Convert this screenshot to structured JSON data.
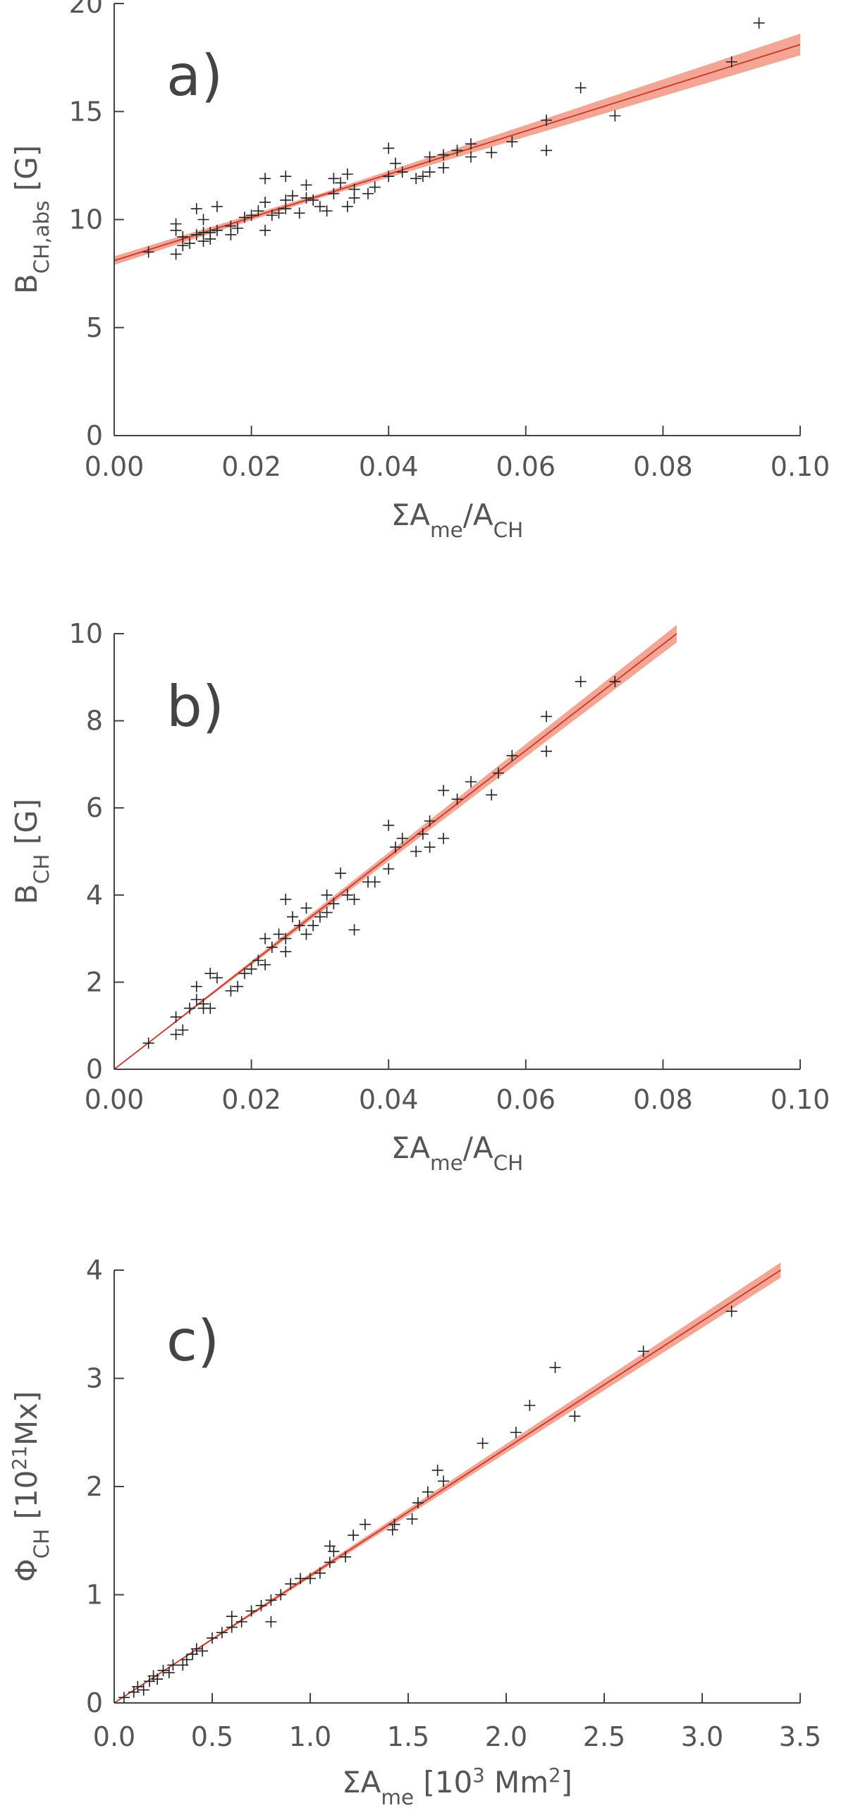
{
  "chart_data": [
    {
      "type": "scatter",
      "annotation": "a)",
      "xlabel": [
        {
          "text": "ΣA"
        },
        {
          "text": "me",
          "sub": true
        },
        {
          "text": "/A"
        },
        {
          "text": "CH",
          "sub": true
        }
      ],
      "ylabel": [
        {
          "text": "B"
        },
        {
          "text": "CH,abs",
          "sub": true
        },
        {
          "text": " [G]"
        }
      ],
      "xlim": [
        0,
        0.1
      ],
      "ylim": [
        0,
        20
      ],
      "xticks": [
        {
          "value": 0,
          "label": "0.00"
        },
        {
          "value": 0.02,
          "label": "0.02"
        },
        {
          "value": 0.04,
          "label": "0.04"
        },
        {
          "value": 0.06,
          "label": "0.06"
        },
        {
          "value": 0.08,
          "label": "0.08"
        },
        {
          "value": 0.1,
          "label": "0.10"
        }
      ],
      "yticks": [
        0,
        5,
        10,
        15,
        20
      ],
      "points": {
        "color": "#222222",
        "x": [
          0.005,
          0.009,
          0.009,
          0.009,
          0.01,
          0.01,
          0.011,
          0.012,
          0.012,
          0.013,
          0.013,
          0.013,
          0.014,
          0.014,
          0.015,
          0.015,
          0.017,
          0.017,
          0.018,
          0.019,
          0.02,
          0.021,
          0.022,
          0.022,
          0.022,
          0.023,
          0.024,
          0.025,
          0.025,
          0.025,
          0.026,
          0.027,
          0.028,
          0.028,
          0.029,
          0.03,
          0.031,
          0.032,
          0.032,
          0.033,
          0.034,
          0.034,
          0.035,
          0.035,
          0.037,
          0.038,
          0.04,
          0.04,
          0.041,
          0.042,
          0.044,
          0.045,
          0.046,
          0.046,
          0.048,
          0.048,
          0.05,
          0.052,
          0.052,
          0.055,
          0.058,
          0.063,
          0.063,
          0.068,
          0.073,
          0.09,
          0.094
        ],
        "y": [
          8.5,
          8.4,
          9.8,
          9.5,
          8.8,
          9.2,
          8.9,
          10.5,
          9.3,
          9.0,
          10.0,
          9.4,
          9.1,
          9.4,
          10.6,
          9.5,
          9.3,
          9.7,
          9.6,
          10.1,
          10.2,
          10.4,
          9.5,
          10.8,
          11.9,
          10.2,
          10.3,
          12.0,
          10.5,
          10.9,
          11.1,
          10.3,
          11.6,
          11.0,
          10.9,
          10.6,
          10.4,
          11.2,
          11.9,
          11.7,
          12.1,
          10.6,
          11.0,
          11.4,
          11.2,
          11.5,
          13.3,
          12.0,
          12.6,
          12.2,
          11.9,
          12.0,
          12.2,
          12.9,
          12.4,
          13.0,
          13.2,
          12.9,
          13.5,
          13.1,
          13.6,
          14.6,
          13.2,
          16.1,
          14.8,
          17.3,
          19.1
        ]
      },
      "fit": {
        "color": "#c8372d",
        "band_color": "#f4a593",
        "x": [
          0,
          0.03,
          0.1
        ],
        "y": [
          8.1,
          11.1,
          18.1
        ],
        "lower": [
          7.9,
          11.0,
          17.6
        ],
        "upper": [
          8.3,
          11.2,
          18.6
        ]
      }
    },
    {
      "type": "scatter",
      "annotation": "b)",
      "xlabel": [
        {
          "text": "ΣA"
        },
        {
          "text": "me",
          "sub": true
        },
        {
          "text": "/A"
        },
        {
          "text": "CH",
          "sub": true
        }
      ],
      "ylabel": [
        {
          "text": "B"
        },
        {
          "text": "CH",
          "sub": true
        },
        {
          "text": " [G]"
        }
      ],
      "xlim": [
        0,
        0.1
      ],
      "ylim": [
        0,
        10
      ],
      "xticks": [
        {
          "value": 0,
          "label": "0.00"
        },
        {
          "value": 0.02,
          "label": "0.02"
        },
        {
          "value": 0.04,
          "label": "0.04"
        },
        {
          "value": 0.06,
          "label": "0.06"
        },
        {
          "value": 0.08,
          "label": "0.08"
        },
        {
          "value": 0.1,
          "label": "0.10"
        }
      ],
      "yticks": [
        0,
        2,
        4,
        6,
        8,
        10
      ],
      "points": {
        "color": "#222222",
        "x": [
          0.005,
          0.009,
          0.009,
          0.01,
          0.011,
          0.012,
          0.012,
          0.013,
          0.013,
          0.014,
          0.014,
          0.015,
          0.017,
          0.018,
          0.019,
          0.02,
          0.021,
          0.022,
          0.022,
          0.023,
          0.024,
          0.025,
          0.025,
          0.025,
          0.026,
          0.027,
          0.028,
          0.028,
          0.029,
          0.03,
          0.031,
          0.031,
          0.032,
          0.033,
          0.034,
          0.035,
          0.035,
          0.037,
          0.038,
          0.04,
          0.04,
          0.041,
          0.042,
          0.044,
          0.045,
          0.046,
          0.046,
          0.048,
          0.048,
          0.05,
          0.052,
          0.055,
          0.056,
          0.058,
          0.063,
          0.063,
          0.068,
          0.073
        ],
        "y": [
          0.6,
          1.2,
          0.8,
          0.9,
          1.4,
          1.6,
          1.9,
          1.5,
          1.4,
          1.4,
          2.2,
          2.1,
          1.8,
          1.9,
          2.2,
          2.3,
          2.5,
          3.0,
          2.4,
          2.8,
          3.1,
          3.9,
          3.0,
          2.7,
          3.5,
          3.3,
          3.7,
          3.1,
          3.3,
          3.5,
          4.0,
          3.6,
          3.8,
          4.5,
          4.0,
          3.2,
          3.9,
          4.3,
          4.3,
          5.6,
          4.6,
          5.1,
          5.3,
          5.0,
          5.4,
          5.1,
          5.7,
          6.4,
          5.3,
          6.2,
          6.6,
          6.3,
          6.8,
          7.2,
          8.1,
          7.3,
          8.9,
          8.9
        ]
      },
      "fit": {
        "color": "#c8372d",
        "band_color": "#f4a593",
        "x": [
          0,
          0.082
        ],
        "y": [
          0,
          10
        ],
        "lower": [
          0,
          9.8
        ],
        "upper": [
          0,
          10.2
        ]
      }
    },
    {
      "type": "scatter",
      "annotation": "c)",
      "xlabel": [
        {
          "text": "ΣA"
        },
        {
          "text": "me",
          "sub": true
        },
        {
          "text": " [10"
        },
        {
          "text": "3",
          "sup": true
        },
        {
          "text": " Mm"
        },
        {
          "text": "2",
          "sup": true
        },
        {
          "text": "]"
        }
      ],
      "ylabel": [
        {
          "text": "Φ"
        },
        {
          "text": "CH",
          "sub": true
        },
        {
          "text": " [10"
        },
        {
          "text": "21",
          "sup": true
        },
        {
          "text": "Mx]"
        }
      ],
      "xlim": [
        0,
        3.5
      ],
      "ylim": [
        0,
        4
      ],
      "xticks": [
        {
          "value": 0,
          "label": "0.0"
        },
        0.5,
        {
          "value": 1,
          "label": "1.0"
        },
        1.5,
        {
          "value": 2,
          "label": "2.0"
        },
        2.5,
        {
          "value": 3,
          "label": "3.0"
        },
        3.5
      ],
      "yticks": [
        0,
        1,
        2,
        3,
        4
      ],
      "points": {
        "color": "#222222",
        "x": [
          0.05,
          0.1,
          0.12,
          0.15,
          0.18,
          0.2,
          0.22,
          0.25,
          0.28,
          0.3,
          0.35,
          0.37,
          0.4,
          0.42,
          0.45,
          0.5,
          0.55,
          0.6,
          0.6,
          0.65,
          0.7,
          0.75,
          0.8,
          0.8,
          0.85,
          0.9,
          0.95,
          1.0,
          1.05,
          1.1,
          1.1,
          1.12,
          1.18,
          1.22,
          1.28,
          1.42,
          1.43,
          1.52,
          1.55,
          1.6,
          1.65,
          1.68,
          1.88,
          2.05,
          2.12,
          2.25,
          2.35,
          2.7,
          3.15
        ],
        "y": [
          0.05,
          0.1,
          0.15,
          0.12,
          0.2,
          0.25,
          0.22,
          0.3,
          0.28,
          0.35,
          0.35,
          0.4,
          0.45,
          0.5,
          0.48,
          0.6,
          0.65,
          0.7,
          0.8,
          0.75,
          0.85,
          0.9,
          0.95,
          0.75,
          1.0,
          1.1,
          1.15,
          1.15,
          1.2,
          1.3,
          1.45,
          1.4,
          1.35,
          1.55,
          1.65,
          1.6,
          1.65,
          1.7,
          1.85,
          1.95,
          2.15,
          2.05,
          2.4,
          2.5,
          2.75,
          3.1,
          2.65,
          3.25,
          3.62
        ]
      },
      "fit": {
        "color": "#c8372d",
        "band_color": "#f4a593",
        "x": [
          0,
          3.4
        ],
        "y": [
          0,
          4
        ],
        "lower": [
          0,
          3.93
        ],
        "upper": [
          0,
          4.07
        ]
      }
    }
  ]
}
